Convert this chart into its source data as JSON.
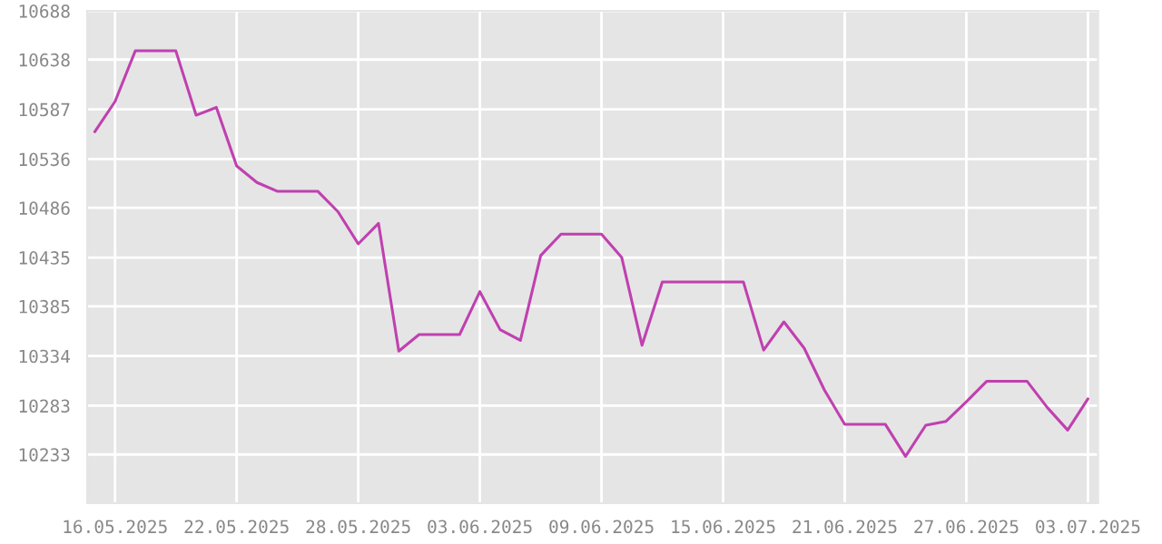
{
  "chart_data": {
    "type": "line",
    "x": [
      "2025-05-15",
      "2025-05-16",
      "2025-05-17",
      "2025-05-18",
      "2025-05-19",
      "2025-05-20",
      "2025-05-21",
      "2025-05-22",
      "2025-05-23",
      "2025-05-24",
      "2025-05-25",
      "2025-05-26",
      "2025-05-27",
      "2025-05-28",
      "2025-05-29",
      "2025-05-30",
      "2025-05-31",
      "2025-06-01",
      "2025-06-02",
      "2025-06-03",
      "2025-06-04",
      "2025-06-05",
      "2025-06-06",
      "2025-06-07",
      "2025-06-08",
      "2025-06-09",
      "2025-06-10",
      "2025-06-11",
      "2025-06-12",
      "2025-06-13",
      "2025-06-14",
      "2025-06-15",
      "2025-06-16",
      "2025-06-17",
      "2025-06-18",
      "2025-06-19",
      "2025-06-20",
      "2025-06-21",
      "2025-06-22",
      "2025-06-23",
      "2025-06-24",
      "2025-06-25",
      "2025-06-26",
      "2025-06-27",
      "2025-06-28",
      "2025-06-29",
      "2025-06-30",
      "2025-07-01",
      "2025-07-02",
      "2025-07-03"
    ],
    "series": [
      {
        "color": "#c040b0",
        "values": [
          10564,
          10595,
          10647,
          10647,
          10647,
          10581,
          10589,
          10529,
          10512,
          10503,
          10503,
          10503,
          10482,
          10449,
          10470,
          10339,
          10356,
          10356,
          10356,
          10400,
          10361,
          10350,
          10437,
          10459,
          10459,
          10459,
          10435,
          10345,
          10410,
          10410,
          10410,
          10410,
          10410,
          10340,
          10369,
          10342,
          10299,
          10264,
          10264,
          10264,
          10231,
          10263,
          10267,
          10287,
          10308,
          10308,
          10308,
          10281,
          10258,
          10290
        ]
      }
    ],
    "xlim": [
      "2025-05-14T15:00",
      "2025-07-03T12:00"
    ],
    "ylim": [
      10183,
      10688
    ],
    "xticks": [
      {
        "value": "2025-05-16",
        "label": "16.05.2025"
      },
      {
        "value": "2025-05-22",
        "label": "22.05.2025"
      },
      {
        "value": "2025-05-28",
        "label": "28.05.2025"
      },
      {
        "value": "2025-06-03",
        "label": "03.06.2025"
      },
      {
        "value": "2025-06-09",
        "label": "09.06.2025"
      },
      {
        "value": "2025-06-15",
        "label": "15.06.2025"
      },
      {
        "value": "2025-06-21",
        "label": "21.06.2025"
      },
      {
        "value": "2025-06-27",
        "label": "27.06.2025"
      },
      {
        "value": "2025-07-03",
        "label": "03.07.2025"
      }
    ],
    "yticks": [
      10233,
      10283,
      10334,
      10385,
      10435,
      10486,
      10536,
      10587,
      10638,
      10688
    ],
    "grid": true,
    "legend": false,
    "marker": "none",
    "line_style": "solid"
  }
}
